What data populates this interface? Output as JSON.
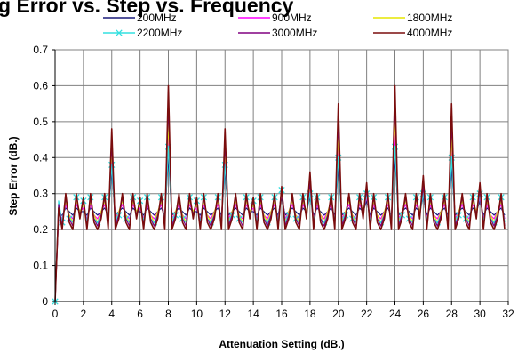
{
  "chart_data": {
    "type": "line",
    "title": "g Error vs. Step vs. Frequency",
    "xlabel": "Attenuation Setting (dB.)",
    "ylabel": "Step Error (dB.)",
    "xlim": [
      0,
      32
    ],
    "ylim": [
      0,
      0.7
    ],
    "x_ticks": [
      "0",
      "2",
      "4",
      "6",
      "8",
      "10",
      "12",
      "14",
      "16",
      "18",
      "20",
      "22",
      "24",
      "26",
      "28",
      "30",
      "32"
    ],
    "y_ticks": [
      "0",
      "0.1",
      "0.2",
      "0.3",
      "0.4",
      "0.5",
      "0.6",
      "0.7"
    ],
    "grid": true,
    "legend_position": "top",
    "x": [
      0,
      0.25,
      0.5,
      0.75,
      1,
      1.25,
      1.5,
      1.75,
      2,
      2.25,
      2.5,
      2.75,
      3,
      3.25,
      3.5,
      3.75,
      4,
      4.25,
      4.5,
      4.75,
      5,
      5.25,
      5.5,
      5.75,
      6,
      6.25,
      6.5,
      6.75,
      7,
      7.25,
      7.5,
      7.75,
      8,
      8.25,
      8.5,
      8.75,
      9,
      9.25,
      9.5,
      9.75,
      10,
      10.25,
      10.5,
      10.75,
      11,
      11.25,
      11.5,
      11.75,
      12,
      12.25,
      12.5,
      12.75,
      13,
      13.25,
      13.5,
      13.75,
      14,
      14.25,
      14.5,
      14.75,
      15,
      15.25,
      15.5,
      15.75,
      16,
      16.25,
      16.5,
      16.75,
      17,
      17.25,
      17.5,
      17.75,
      18,
      18.25,
      18.5,
      18.75,
      19,
      19.25,
      19.5,
      19.75,
      20,
      20.25,
      20.5,
      20.75,
      21,
      21.25,
      21.5,
      21.75,
      22,
      22.25,
      22.5,
      22.75,
      23,
      23.25,
      23.5,
      23.75,
      24,
      24.25,
      24.5,
      24.75,
      25,
      25.25,
      25.5,
      25.75,
      26,
      26.25,
      26.5,
      26.75,
      27,
      27.25,
      27.5,
      27.75,
      28,
      28.25,
      28.5,
      28.75,
      29,
      29.25,
      29.5,
      29.75,
      30,
      30.25,
      30.5,
      30.75,
      31,
      31.25,
      31.5,
      31.75
    ],
    "series": [
      {
        "name": "200MHz",
        "color": "#1a1a7a",
        "marker": "none",
        "values": [
          0,
          0.24,
          0.24,
          0.26,
          0.25,
          0.24,
          0.26,
          0.25,
          0.25,
          0.24,
          0.26,
          0.25,
          0.24,
          0.25,
          0.26,
          0.24,
          0.36,
          0.24,
          0.25,
          0.26,
          0.25,
          0.24,
          0.26,
          0.25,
          0.25,
          0.24,
          0.26,
          0.25,
          0.24,
          0.25,
          0.26,
          0.24,
          0.4,
          0.24,
          0.25,
          0.26,
          0.25,
          0.24,
          0.26,
          0.25,
          0.25,
          0.24,
          0.26,
          0.25,
          0.24,
          0.25,
          0.26,
          0.24,
          0.36,
          0.24,
          0.25,
          0.26,
          0.25,
          0.24,
          0.26,
          0.25,
          0.25,
          0.24,
          0.26,
          0.25,
          0.24,
          0.25,
          0.26,
          0.24,
          0.29,
          0.24,
          0.25,
          0.26,
          0.25,
          0.24,
          0.26,
          0.25,
          0.29,
          0.24,
          0.26,
          0.25,
          0.24,
          0.25,
          0.26,
          0.24,
          0.37,
          0.24,
          0.25,
          0.26,
          0.25,
          0.24,
          0.26,
          0.25,
          0.28,
          0.24,
          0.26,
          0.25,
          0.24,
          0.25,
          0.26,
          0.24,
          0.4,
          0.24,
          0.25,
          0.26,
          0.25,
          0.24,
          0.26,
          0.25,
          0.29,
          0.24,
          0.26,
          0.25,
          0.24,
          0.25,
          0.26,
          0.24,
          0.37,
          0.24,
          0.25,
          0.26,
          0.25,
          0.24,
          0.26,
          0.25,
          0.28,
          0.24,
          0.26,
          0.25,
          0.24,
          0.25,
          0.26,
          0.24
        ]
      },
      {
        "name": "900MHz",
        "color": "#ff00ff",
        "marker": "none",
        "values": [
          0,
          0.25,
          0.23,
          0.27,
          0.24,
          0.23,
          0.27,
          0.25,
          0.26,
          0.23,
          0.27,
          0.24,
          0.23,
          0.25,
          0.27,
          0.23,
          0.4,
          0.23,
          0.25,
          0.27,
          0.24,
          0.23,
          0.27,
          0.25,
          0.26,
          0.23,
          0.27,
          0.24,
          0.23,
          0.25,
          0.27,
          0.23,
          0.46,
          0.23,
          0.25,
          0.27,
          0.24,
          0.23,
          0.27,
          0.25,
          0.26,
          0.23,
          0.27,
          0.24,
          0.23,
          0.25,
          0.27,
          0.23,
          0.4,
          0.23,
          0.25,
          0.27,
          0.24,
          0.23,
          0.27,
          0.25,
          0.26,
          0.23,
          0.27,
          0.24,
          0.23,
          0.25,
          0.27,
          0.23,
          0.3,
          0.23,
          0.25,
          0.27,
          0.24,
          0.23,
          0.27,
          0.25,
          0.31,
          0.23,
          0.27,
          0.24,
          0.23,
          0.25,
          0.27,
          0.23,
          0.42,
          0.23,
          0.25,
          0.27,
          0.24,
          0.23,
          0.27,
          0.25,
          0.29,
          0.23,
          0.27,
          0.24,
          0.23,
          0.25,
          0.27,
          0.23,
          0.47,
          0.23,
          0.25,
          0.27,
          0.24,
          0.23,
          0.27,
          0.25,
          0.3,
          0.23,
          0.27,
          0.24,
          0.23,
          0.25,
          0.27,
          0.23,
          0.42,
          0.23,
          0.25,
          0.27,
          0.24,
          0.23,
          0.27,
          0.25,
          0.29,
          0.23,
          0.27,
          0.24,
          0.23,
          0.25,
          0.27,
          0.23
        ]
      },
      {
        "name": "1800MHz",
        "color": "#e6e600",
        "marker": "none",
        "values": [
          0,
          0.26,
          0.22,
          0.28,
          0.24,
          0.22,
          0.28,
          0.25,
          0.27,
          0.22,
          0.28,
          0.24,
          0.22,
          0.25,
          0.28,
          0.22,
          0.42,
          0.22,
          0.25,
          0.28,
          0.24,
          0.22,
          0.28,
          0.25,
          0.27,
          0.22,
          0.28,
          0.24,
          0.22,
          0.25,
          0.28,
          0.22,
          0.5,
          0.22,
          0.25,
          0.28,
          0.24,
          0.22,
          0.28,
          0.25,
          0.27,
          0.22,
          0.28,
          0.24,
          0.22,
          0.25,
          0.28,
          0.22,
          0.42,
          0.22,
          0.25,
          0.28,
          0.24,
          0.22,
          0.28,
          0.25,
          0.27,
          0.22,
          0.28,
          0.24,
          0.22,
          0.25,
          0.28,
          0.22,
          0.31,
          0.22,
          0.25,
          0.28,
          0.24,
          0.22,
          0.28,
          0.25,
          0.32,
          0.22,
          0.28,
          0.24,
          0.22,
          0.25,
          0.28,
          0.22,
          0.46,
          0.22,
          0.25,
          0.28,
          0.24,
          0.22,
          0.28,
          0.25,
          0.3,
          0.22,
          0.28,
          0.24,
          0.22,
          0.25,
          0.28,
          0.22,
          0.52,
          0.22,
          0.25,
          0.28,
          0.24,
          0.22,
          0.28,
          0.25,
          0.31,
          0.22,
          0.28,
          0.24,
          0.22,
          0.25,
          0.28,
          0.22,
          0.46,
          0.22,
          0.25,
          0.28,
          0.24,
          0.22,
          0.28,
          0.25,
          0.3,
          0.22,
          0.28,
          0.24,
          0.22,
          0.25,
          0.28,
          0.22
        ]
      },
      {
        "name": "2200MHz",
        "color": "#33e0e0",
        "marker": "x",
        "values": [
          0,
          0.28,
          0.22,
          0.29,
          0.23,
          0.22,
          0.29,
          0.24,
          0.28,
          0.22,
          0.29,
          0.23,
          0.22,
          0.24,
          0.29,
          0.22,
          0.38,
          0.22,
          0.24,
          0.29,
          0.23,
          0.22,
          0.29,
          0.24,
          0.28,
          0.22,
          0.29,
          0.23,
          0.22,
          0.24,
          0.29,
          0.22,
          0.43,
          0.22,
          0.24,
          0.29,
          0.23,
          0.22,
          0.29,
          0.24,
          0.28,
          0.22,
          0.29,
          0.23,
          0.22,
          0.24,
          0.29,
          0.22,
          0.38,
          0.22,
          0.24,
          0.29,
          0.23,
          0.22,
          0.29,
          0.24,
          0.28,
          0.22,
          0.29,
          0.23,
          0.22,
          0.24,
          0.29,
          0.22,
          0.31,
          0.22,
          0.24,
          0.29,
          0.23,
          0.22,
          0.29,
          0.24,
          0.3,
          0.22,
          0.29,
          0.23,
          0.22,
          0.24,
          0.29,
          0.22,
          0.4,
          0.22,
          0.24,
          0.29,
          0.23,
          0.22,
          0.29,
          0.24,
          0.3,
          0.22,
          0.29,
          0.23,
          0.22,
          0.24,
          0.29,
          0.22,
          0.43,
          0.22,
          0.24,
          0.29,
          0.23,
          0.22,
          0.29,
          0.24,
          0.3,
          0.22,
          0.29,
          0.23,
          0.22,
          0.24,
          0.29,
          0.22,
          0.4,
          0.22,
          0.24,
          0.29,
          0.23,
          0.22,
          0.29,
          0.24,
          0.3,
          0.22,
          0.29,
          0.23,
          0.22,
          0.24,
          0.29,
          0.22
        ]
      },
      {
        "name": "3000MHz",
        "color": "#800080",
        "marker": "none",
        "values": [
          0,
          0.27,
          0.21,
          0.29,
          0.23,
          0.21,
          0.29,
          0.24,
          0.28,
          0.21,
          0.29,
          0.23,
          0.21,
          0.24,
          0.29,
          0.21,
          0.44,
          0.21,
          0.24,
          0.29,
          0.23,
          0.21,
          0.29,
          0.24,
          0.28,
          0.21,
          0.29,
          0.23,
          0.21,
          0.24,
          0.29,
          0.21,
          0.55,
          0.21,
          0.24,
          0.29,
          0.23,
          0.21,
          0.29,
          0.24,
          0.28,
          0.21,
          0.29,
          0.23,
          0.21,
          0.24,
          0.29,
          0.21,
          0.44,
          0.21,
          0.24,
          0.29,
          0.23,
          0.21,
          0.29,
          0.24,
          0.28,
          0.21,
          0.29,
          0.23,
          0.21,
          0.24,
          0.29,
          0.21,
          0.32,
          0.21,
          0.24,
          0.29,
          0.23,
          0.21,
          0.29,
          0.24,
          0.33,
          0.21,
          0.29,
          0.23,
          0.21,
          0.24,
          0.29,
          0.21,
          0.5,
          0.21,
          0.24,
          0.29,
          0.23,
          0.21,
          0.29,
          0.24,
          0.31,
          0.21,
          0.29,
          0.23,
          0.21,
          0.24,
          0.29,
          0.21,
          0.56,
          0.21,
          0.24,
          0.29,
          0.23,
          0.21,
          0.29,
          0.24,
          0.32,
          0.21,
          0.29,
          0.23,
          0.21,
          0.24,
          0.29,
          0.21,
          0.5,
          0.21,
          0.24,
          0.29,
          0.23,
          0.21,
          0.29,
          0.24,
          0.31,
          0.21,
          0.29,
          0.23,
          0.21,
          0.24,
          0.29,
          0.21
        ]
      },
      {
        "name": "4000MHz",
        "color": "#7a0d0d",
        "marker": "none",
        "values": [
          0,
          0.26,
          0.2,
          0.3,
          0.22,
          0.2,
          0.3,
          0.23,
          0.29,
          0.2,
          0.3,
          0.22,
          0.2,
          0.23,
          0.3,
          0.2,
          0.48,
          0.2,
          0.23,
          0.3,
          0.22,
          0.2,
          0.3,
          0.23,
          0.29,
          0.2,
          0.3,
          0.22,
          0.2,
          0.23,
          0.3,
          0.2,
          0.6,
          0.2,
          0.23,
          0.3,
          0.22,
          0.2,
          0.3,
          0.23,
          0.29,
          0.2,
          0.3,
          0.22,
          0.2,
          0.23,
          0.3,
          0.2,
          0.48,
          0.2,
          0.23,
          0.3,
          0.22,
          0.2,
          0.3,
          0.23,
          0.29,
          0.2,
          0.3,
          0.22,
          0.2,
          0.23,
          0.3,
          0.2,
          0.32,
          0.2,
          0.23,
          0.3,
          0.22,
          0.2,
          0.3,
          0.23,
          0.36,
          0.2,
          0.3,
          0.22,
          0.2,
          0.23,
          0.3,
          0.2,
          0.55,
          0.2,
          0.23,
          0.3,
          0.22,
          0.2,
          0.3,
          0.23,
          0.33,
          0.2,
          0.3,
          0.22,
          0.2,
          0.23,
          0.3,
          0.2,
          0.6,
          0.2,
          0.23,
          0.3,
          0.22,
          0.2,
          0.3,
          0.23,
          0.35,
          0.2,
          0.3,
          0.22,
          0.2,
          0.23,
          0.3,
          0.2,
          0.55,
          0.2,
          0.23,
          0.3,
          0.22,
          0.2,
          0.3,
          0.23,
          0.33,
          0.2,
          0.3,
          0.22,
          0.2,
          0.23,
          0.3,
          0.2
        ]
      }
    ]
  }
}
